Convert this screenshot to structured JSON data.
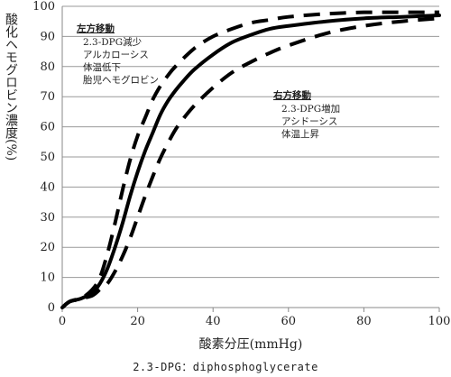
{
  "chart_data": {
    "type": "line",
    "xlabel": "酸素分圧(mmHg)",
    "ylabel": "酸化ヘモグロビン濃度(%)",
    "xlim": [
      0,
      100
    ],
    "ylim": [
      0,
      100
    ],
    "xticks": [
      "0",
      "20",
      "40",
      "60",
      "80",
      "100"
    ],
    "yticks": [
      "0",
      "10",
      "20",
      "30",
      "40",
      "50",
      "60",
      "70",
      "80",
      "90",
      "100"
    ],
    "grid": "horizontal",
    "series": [
      {
        "style": "solid",
        "x": [
          0,
          2,
          5,
          8,
          10,
          12,
          14,
          16,
          18,
          20,
          22,
          24,
          26,
          28,
          30,
          32,
          35,
          40,
          45,
          50,
          55,
          60,
          70,
          80,
          90,
          100
        ],
        "y": [
          0,
          2,
          3,
          5,
          8,
          13,
          20,
          28,
          37,
          45,
          52,
          58,
          64,
          68.5,
          72,
          75,
          79,
          84,
          88,
          90.5,
          92.5,
          93.5,
          95,
          96,
          96.5,
          97
        ]
      },
      {
        "style": "dashed",
        "x": [
          0,
          2,
          5,
          8,
          10,
          12,
          14,
          16,
          18,
          20,
          22,
          24,
          26,
          28,
          30,
          35,
          40,
          45,
          50,
          55,
          60,
          70,
          80,
          90,
          100
        ],
        "y": [
          0,
          2,
          3,
          6,
          10,
          18,
          28,
          39,
          49,
          57,
          63,
          69,
          73.5,
          77,
          80,
          86,
          90,
          92.5,
          94.5,
          95.5,
          96.5,
          97.5,
          98,
          98,
          98
        ]
      },
      {
        "style": "dashed",
        "x": [
          0,
          2,
          5,
          8,
          10,
          12,
          14,
          16,
          18,
          20,
          22,
          24,
          26,
          28,
          30,
          32,
          35,
          40,
          45,
          50,
          55,
          60,
          70,
          80,
          90,
          100
        ],
        "y": [
          0,
          2,
          3,
          4,
          6,
          8,
          12,
          17,
          23,
          30,
          37,
          43.5,
          49.5,
          54.5,
          59,
          62.5,
          67,
          73,
          78,
          81.5,
          84.5,
          87,
          91,
          93.5,
          95,
          96
        ]
      }
    ],
    "annotations": [
      {
        "title": "左方移動",
        "lines": [
          "2.3-DPG減少",
          "アルカローシス",
          "体温低下",
          "胎児ヘモグロビン"
        ]
      },
      {
        "title": "右方移動",
        "lines": [
          "2.3-DPG増加",
          "アシドーシス",
          "体温上昇"
        ]
      }
    ]
  },
  "footnote": "2.3-DPG：diphosphoglycerate"
}
